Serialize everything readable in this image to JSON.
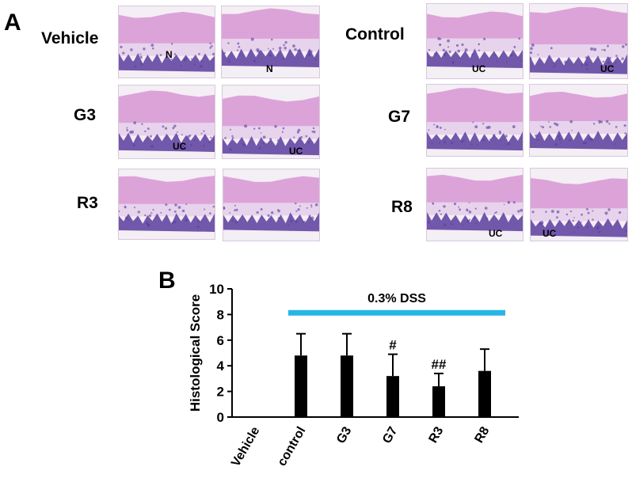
{
  "panels": {
    "a_label": "A",
    "b_label": "B"
  },
  "micrographs": {
    "rows": [
      {
        "label": "Vehicle",
        "images": [
          {
            "tag": "N"
          },
          {
            "tag": "N"
          }
        ]
      },
      {
        "label": "Control",
        "images": [
          {
            "tag": "UC"
          },
          {
            "tag": "UC"
          }
        ]
      },
      {
        "label": "G3",
        "images": [
          {
            "tag": "UC"
          },
          {
            "tag": "UC"
          }
        ]
      },
      {
        "label": "G7",
        "images": [
          {
            "tag": ""
          },
          {
            "tag": ""
          }
        ]
      },
      {
        "label": "R3",
        "images": [
          {
            "tag": ""
          },
          {
            "tag": ""
          }
        ]
      },
      {
        "label": "R8",
        "images": [
          {
            "tag": "UC"
          },
          {
            "tag": "UC"
          }
        ]
      }
    ]
  },
  "colors": {
    "bar": "#000000",
    "dss_line": "#27b5e6",
    "tissue_muscle": "#d99ad6",
    "tissue_mucosa": "#5a3d9e"
  },
  "chart_data": {
    "type": "bar",
    "title": "",
    "ylabel": "Histological Score",
    "xlabel": "",
    "ylim": [
      0,
      10
    ],
    "yticks": [
      0,
      2,
      4,
      6,
      8,
      10
    ],
    "categories": [
      "Vehicle",
      "control",
      "G3",
      "G7",
      "R3",
      "R8"
    ],
    "values": [
      0,
      4.8,
      4.8,
      3.2,
      2.4,
      3.6
    ],
    "error_upper": [
      0,
      1.7,
      1.7,
      1.7,
      1.0,
      1.7
    ],
    "significance": [
      "",
      "",
      "",
      "#",
      "##",
      ""
    ],
    "annotation": {
      "text": "0.3% DSS",
      "y": 8.1,
      "from_category": "control",
      "to_category": "R8"
    }
  }
}
